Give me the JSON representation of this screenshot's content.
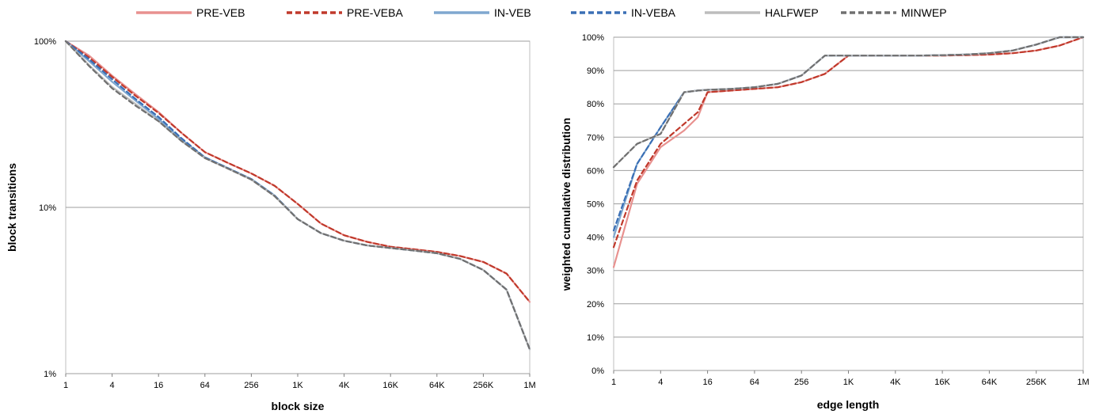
{
  "legend": [
    {
      "label": "Pre-vEB",
      "display": "PRE-VEB"
    },
    {
      "label": "Pre-vEBa",
      "display": "PRE-VEBA"
    },
    {
      "label": "In-vEB",
      "display": "IN-VEB"
    },
    {
      "label": "In-vEBa",
      "display": "IN-VEBA"
    },
    {
      "label": "HalfWEP",
      "display": "HALFWEP"
    },
    {
      "label": "MinWEP",
      "display": "MINWEP"
    }
  ],
  "series_style": [
    {
      "name": "Pre-vEB",
      "color": "#e8918f",
      "dash": "solid"
    },
    {
      "name": "Pre-vEBa",
      "color": "#c0392b",
      "dash": "dashed"
    },
    {
      "name": "In-vEB",
      "color": "#7fa7cf",
      "dash": "solid"
    },
    {
      "name": "In-vEBa",
      "color": "#3a6fb5",
      "dash": "dashed"
    },
    {
      "name": "HalfWEP",
      "color": "#bdbdbd",
      "dash": "solid"
    },
    {
      "name": "MinWEP",
      "color": "#707070",
      "dash": "dashed"
    }
  ],
  "chart_data": [
    {
      "type": "line",
      "xlabel": "block size",
      "ylabel": "block transitions",
      "yscale": "log",
      "ylim": [
        0.01,
        1
      ],
      "x_ticks": [
        "1",
        "4",
        "16",
        "64",
        "256",
        "1K",
        "4K",
        "16K",
        "64K",
        "256K",
        "1M"
      ],
      "y_ticks": [
        "1%",
        "10%",
        "100%"
      ],
      "grid": "horizontal",
      "legend_position": "top",
      "x": [
        1,
        2,
        4,
        8,
        16,
        32,
        64,
        128,
        256,
        512,
        1024,
        2048,
        4096,
        8192,
        16384,
        32768,
        65536,
        131072,
        262144,
        524288,
        1048576
      ],
      "series": [
        {
          "name": "Pre-vEB",
          "values": [
            1.0,
            0.82,
            0.62,
            0.48,
            0.375,
            0.28,
            0.215,
            0.185,
            0.16,
            0.135,
            0.105,
            0.08,
            0.068,
            0.062,
            0.058,
            0.056,
            0.054,
            0.051,
            0.047,
            0.04,
            0.027
          ]
        },
        {
          "name": "Pre-vEBa",
          "values": [
            1.0,
            0.8,
            0.61,
            0.47,
            0.37,
            0.28,
            0.215,
            0.185,
            0.16,
            0.135,
            0.105,
            0.08,
            0.068,
            0.062,
            0.058,
            0.056,
            0.054,
            0.051,
            0.047,
            0.04,
            0.027
          ]
        },
        {
          "name": "In-vEB",
          "values": [
            1.0,
            0.76,
            0.57,
            0.44,
            0.34,
            0.255,
            0.2,
            0.172,
            0.148,
            0.118,
            0.085,
            0.07,
            0.063,
            0.059,
            0.057,
            0.055,
            0.053,
            0.049,
            0.042,
            0.032,
            0.014
          ]
        },
        {
          "name": "In-vEBa",
          "values": [
            1.0,
            0.78,
            0.59,
            0.45,
            0.35,
            0.26,
            0.2,
            0.172,
            0.148,
            0.118,
            0.085,
            0.07,
            0.063,
            0.059,
            0.057,
            0.055,
            0.053,
            0.049,
            0.042,
            0.032,
            0.014
          ]
        },
        {
          "name": "HalfWEP",
          "values": [
            1.0,
            0.72,
            0.53,
            0.42,
            0.33,
            0.25,
            0.198,
            0.171,
            0.147,
            0.117,
            0.085,
            0.07,
            0.063,
            0.059,
            0.057,
            0.055,
            0.053,
            0.049,
            0.042,
            0.032,
            0.014
          ]
        },
        {
          "name": "MinWEP",
          "values": [
            1.0,
            0.71,
            0.52,
            0.41,
            0.33,
            0.25,
            0.198,
            0.171,
            0.147,
            0.117,
            0.085,
            0.07,
            0.063,
            0.059,
            0.057,
            0.055,
            0.053,
            0.049,
            0.042,
            0.032,
            0.014
          ]
        }
      ]
    },
    {
      "type": "line",
      "xlabel": "edge length",
      "ylabel": "weighted cumulative distribution",
      "yscale": "linear",
      "ylim": [
        0,
        100
      ],
      "x_ticks": [
        "1",
        "4",
        "16",
        "64",
        "256",
        "1K",
        "4K",
        "16K",
        "64K",
        "256K",
        "1M"
      ],
      "y_ticks": [
        "0%",
        "10%",
        "20%",
        "30%",
        "40%",
        "50%",
        "60%",
        "70%",
        "80%",
        "90%",
        "100%"
      ],
      "grid": "horizontal",
      "x": [
        1,
        2,
        4,
        8,
        12,
        16,
        32,
        64,
        128,
        256,
        512,
        1024,
        2048,
        4096,
        8192,
        16384,
        32768,
        65536,
        131072,
        262144,
        524288,
        1048576
      ],
      "series": [
        {
          "name": "Pre-vEB",
          "values": [
            31,
            56,
            67,
            72,
            76,
            83.5,
            84,
            84.5,
            85,
            86.5,
            89,
            94.5,
            94.5,
            94.5,
            94.5,
            94.5,
            94.6,
            94.8,
            95.2,
            96,
            97.5,
            100
          ]
        },
        {
          "name": "Pre-vEBa",
          "values": [
            37,
            57,
            68,
            74,
            77.5,
            83.5,
            84,
            84.5,
            85,
            86.5,
            89,
            94.5,
            94.5,
            94.5,
            94.5,
            94.5,
            94.6,
            94.8,
            95.2,
            96,
            97.5,
            100
          ]
        },
        {
          "name": "In-vEB",
          "values": [
            40,
            62,
            73,
            83.5,
            84,
            84.2,
            84.5,
            85,
            86,
            88.5,
            94.5,
            94.5,
            94.5,
            94.5,
            94.5,
            94.6,
            94.8,
            95.2,
            96,
            97.8,
            100,
            100
          ]
        },
        {
          "name": "In-vEBa",
          "values": [
            42,
            62,
            73,
            83.5,
            84,
            84.2,
            84.5,
            85,
            86,
            88.5,
            94.5,
            94.5,
            94.5,
            94.5,
            94.5,
            94.6,
            94.8,
            95.2,
            96,
            97.8,
            100,
            100
          ]
        },
        {
          "name": "HalfWEP",
          "values": [
            61,
            68,
            71,
            83.5,
            84,
            84.2,
            84.5,
            85,
            86,
            88.5,
            94.5,
            94.5,
            94.5,
            94.5,
            94.5,
            94.6,
            94.8,
            95.2,
            96,
            97.8,
            100,
            100
          ]
        },
        {
          "name": "MinWEP",
          "values": [
            61,
            68,
            71,
            83.5,
            84,
            84.2,
            84.5,
            85,
            86,
            88.5,
            94.5,
            94.5,
            94.5,
            94.5,
            94.5,
            94.6,
            94.8,
            95.2,
            96,
            97.8,
            100,
            100
          ]
        }
      ]
    }
  ]
}
